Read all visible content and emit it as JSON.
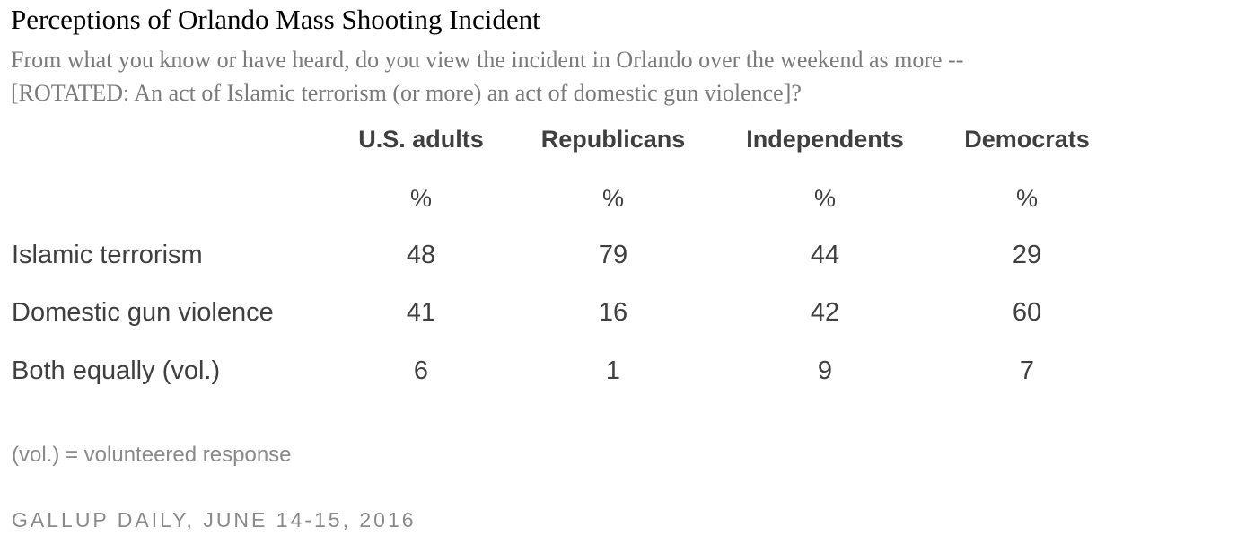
{
  "title": "Perceptions of Orlando Mass Shooting Incident",
  "subtitle_lines": [
    "From what you know or have heard, do you view the incident in Orlando over the weekend as more --",
    "[ROTATED: An act of Islamic terrorism (or more) an act of domestic gun violence]?"
  ],
  "note": "(vol.) = volunteered response",
  "source": "GALLUP DAILY, JUNE 14-15, 2016",
  "chart_data": {
    "type": "table",
    "title": "Perceptions of Orlando Mass Shooting Incident",
    "columns": [
      "U.S. adults",
      "Republicans",
      "Independents",
      "Democrats"
    ],
    "unit": "%",
    "rows": [
      {
        "label": "Islamic terrorism",
        "values": [
          48,
          79,
          44,
          29
        ]
      },
      {
        "label": "Domestic gun violence",
        "values": [
          41,
          16,
          42,
          60
        ]
      },
      {
        "label": "Both equally (vol.)",
        "values": [
          6,
          1,
          9,
          7
        ]
      }
    ]
  }
}
